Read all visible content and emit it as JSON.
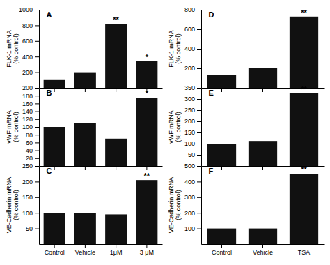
{
  "chart_data": [
    {
      "type": "bar",
      "title": "A",
      "ylabel": "FLK-1 mRNA\n(% control)",
      "categories": [
        null,
        null,
        null,
        null
      ],
      "values": [
        100,
        200,
        820,
        340
      ],
      "color": "#111111",
      "ylim": [
        0,
        1000
      ],
      "yticks": [
        200,
        400,
        600,
        800,
        1000
      ],
      "annotations": [
        null,
        null,
        "**",
        "*"
      ]
    },
    {
      "type": "bar",
      "title": "B",
      "ylabel": "vWF mRNA\n(% control)",
      "categories": [
        null,
        null,
        null,
        null
      ],
      "values": [
        100,
        110,
        70,
        175
      ],
      "color": "#111111",
      "ylim": [
        0,
        200
      ],
      "yticks": [
        20,
        40,
        60,
        80,
        100,
        120,
        140,
        160,
        180,
        200
      ],
      "annotations": [
        null,
        null,
        null,
        "*"
      ]
    },
    {
      "type": "bar",
      "title": "C",
      "ylabel": "VE-Cadherin mRNA\n(% control)",
      "categories": [
        "Control",
        "Vehicle",
        "1μM",
        "3 μM"
      ],
      "values": [
        100,
        100,
        95,
        205
      ],
      "color": "#111111",
      "ylim": [
        0,
        250
      ],
      "yticks": [
        50,
        100,
        150,
        200,
        250
      ],
      "annotations": [
        null,
        null,
        null,
        "**"
      ]
    },
    {
      "type": "bar",
      "title": "D",
      "ylabel": "FLK-1 mRNA\n(% control)",
      "categories": [
        null,
        null,
        null
      ],
      "values": [
        130,
        200,
        730
      ],
      "color": "#111111",
      "ylim": [
        0,
        800
      ],
      "yticks": [
        200,
        400,
        600,
        800
      ],
      "annotations": [
        null,
        null,
        "**"
      ]
    },
    {
      "type": "bar",
      "title": "E",
      "ylabel": "vWF mRNA\n(% control)",
      "categories": [
        null,
        null,
        null
      ],
      "values": [
        100,
        112,
        325
      ],
      "color": "#111111",
      "ylim": [
        0,
        350
      ],
      "yticks": [
        50,
        100,
        150,
        200,
        250,
        300,
        350
      ],
      "annotations": [
        null,
        null,
        "**"
      ]
    },
    {
      "type": "bar",
      "title": "F",
      "ylabel": "VE-Cadherin mRNA\n(% control)",
      "categories": [
        "Control",
        "Vehicle",
        "TSA"
      ],
      "values": [
        100,
        100,
        450
      ],
      "color": "#111111",
      "ylim": [
        0,
        500
      ],
      "yticks": [
        100,
        200,
        300,
        400,
        500
      ],
      "annotations": [
        null,
        null,
        "**"
      ]
    }
  ]
}
